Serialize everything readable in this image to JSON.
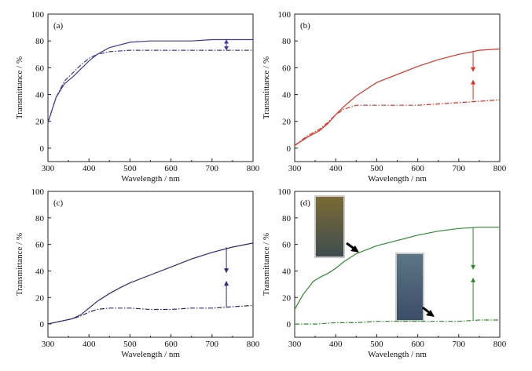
{
  "chart_data": [
    {
      "type": "line",
      "panel_label": "(a)",
      "xlabel": "Wavelength / nm",
      "ylabel": "Transmittance / %",
      "xlim": [
        300,
        800
      ],
      "ylim": [
        -10,
        100
      ],
      "xticks": [
        300,
        400,
        500,
        600,
        700,
        800
      ],
      "yticks": [
        0,
        20,
        40,
        60,
        80,
        100
      ],
      "colors": {
        "line": "#3d3a9a"
      },
      "series": [
        {
          "style": "solid",
          "x": [
            300,
            320,
            340,
            360,
            380,
            400,
            420,
            450,
            500,
            550,
            600,
            650,
            700,
            750,
            800
          ],
          "y": [
            19,
            38,
            48,
            53,
            59,
            65,
            70,
            75,
            79,
            80,
            80,
            80,
            81,
            81,
            81
          ]
        },
        {
          "style": "dash-dot",
          "x": [
            300,
            320,
            340,
            360,
            380,
            400,
            420,
            450,
            500,
            550,
            600,
            650,
            700,
            750,
            800
          ],
          "y": [
            19,
            38,
            50,
            56,
            62,
            67,
            70,
            72,
            73,
            73,
            73,
            73,
            73,
            73,
            73
          ]
        }
      ],
      "arrow": {
        "x": 735,
        "from": 73,
        "to": 81,
        "direction": "double"
      }
    },
    {
      "type": "line",
      "panel_label": "(b)",
      "xlabel": "Wavelength / nm",
      "ylabel": "Transmittance / %",
      "xlim": [
        300,
        800
      ],
      "ylim": [
        -10,
        100
      ],
      "xticks": [
        300,
        400,
        500,
        600,
        700,
        800
      ],
      "yticks": [
        0,
        20,
        40,
        60,
        80,
        100
      ],
      "colors": {
        "line": "#e03126"
      },
      "series": [
        {
          "style": "solid",
          "x": [
            300,
            330,
            360,
            380,
            400,
            420,
            450,
            480,
            500,
            550,
            600,
            650,
            700,
            750,
            800
          ],
          "y": [
            2,
            8,
            13,
            18,
            25,
            31,
            39,
            45,
            49,
            55,
            61,
            66,
            70,
            73,
            74
          ]
        },
        {
          "style": "dash-dot",
          "x": [
            300,
            330,
            360,
            380,
            400,
            420,
            450,
            480,
            500,
            550,
            600,
            650,
            700,
            750,
            800
          ],
          "y": [
            2,
            9,
            14,
            19,
            25,
            29,
            32,
            32,
            32,
            32,
            32,
            33,
            34,
            35,
            36
          ]
        }
      ],
      "arrow": {
        "x": 735,
        "from": 36,
        "to": 72,
        "direction": "double-converging"
      }
    },
    {
      "type": "line",
      "panel_label": "(c)",
      "xlabel": "Wavelength / nm",
      "ylabel": "Transmittance / %",
      "xlim": [
        300,
        800
      ],
      "ylim": [
        -10,
        100
      ],
      "xticks": [
        300,
        400,
        500,
        600,
        700,
        800
      ],
      "yticks": [
        0,
        20,
        40,
        60,
        80,
        100
      ],
      "colors": {
        "line": "#2c2a74"
      },
      "series": [
        {
          "style": "solid",
          "x": [
            300,
            330,
            360,
            380,
            400,
            420,
            450,
            480,
            500,
            550,
            600,
            650,
            700,
            750,
            800
          ],
          "y": [
            0,
            2,
            4,
            7,
            12,
            17,
            23,
            28,
            31,
            37,
            43,
            49,
            54,
            58,
            61
          ]
        },
        {
          "style": "dash-dot",
          "x": [
            300,
            330,
            360,
            380,
            400,
            420,
            450,
            480,
            500,
            550,
            600,
            650,
            700,
            750,
            800
          ],
          "y": [
            0,
            2,
            4,
            6,
            9,
            11,
            12,
            12,
            12,
            11,
            11,
            12,
            12,
            13,
            14
          ]
        }
      ],
      "arrow": {
        "x": 735,
        "from": 13,
        "to": 58,
        "direction": "double-converging"
      }
    },
    {
      "type": "line",
      "panel_label": "(d)",
      "xlabel": "Wavelength / nm",
      "ylabel": "Transmittance / %",
      "xlim": [
        300,
        800
      ],
      "ylim": [
        -10,
        100
      ],
      "xticks": [
        300,
        400,
        500,
        600,
        700,
        800
      ],
      "yticks": [
        0,
        20,
        40,
        60,
        80,
        100
      ],
      "colors": {
        "line": "#2f8a2f"
      },
      "series": [
        {
          "style": "solid",
          "x": [
            300,
            320,
            345,
            360,
            380,
            400,
            420,
            450,
            500,
            550,
            600,
            650,
            700,
            750,
            800
          ],
          "y": [
            11,
            22,
            32,
            35,
            38,
            42,
            47,
            53,
            59,
            63,
            67,
            70,
            72,
            73,
            73
          ]
        },
        {
          "style": "dash-dot",
          "x": [
            300,
            350,
            400,
            450,
            500,
            550,
            600,
            650,
            700,
            750,
            800
          ],
          "y": [
            0,
            0,
            1,
            1,
            2,
            2,
            2,
            2,
            2,
            3,
            3
          ]
        }
      ],
      "arrow": {
        "x": 735,
        "from": 3,
        "to": 73,
        "direction": "double-converging"
      },
      "photos": [
        {
          "subject": "brown-tinted glass sample photo",
          "tint": [
            "#7a6a35",
            "#3f4d4e"
          ]
        },
        {
          "subject": "dark blue-grey glass sample photo",
          "tint": [
            "#5d7585",
            "#3b4d67"
          ]
        }
      ]
    }
  ]
}
